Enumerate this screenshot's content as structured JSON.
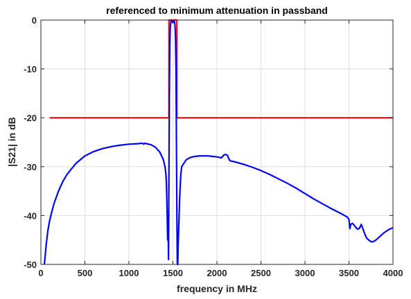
{
  "chart_data": {
    "type": "line",
    "title": "referenced to minimum attenuation in passband",
    "xlabel": "frequency in MHz",
    "ylabel": "|S21| in dB",
    "xlim": [
      0,
      4000
    ],
    "ylim": [
      -50,
      0
    ],
    "xticks": [
      0,
      500,
      1000,
      1500,
      2000,
      2500,
      3000,
      3500,
      4000
    ],
    "yticks": [
      -50,
      -40,
      -30,
      -20,
      -10,
      0
    ],
    "grid": true,
    "series": [
      {
        "color": "#ff0000",
        "x": [
          100,
          1455,
          1455,
          1545,
          1545,
          4000
        ],
        "y": [
          -20,
          -20,
          0,
          0,
          -20,
          -20
        ]
      },
      {
        "color": "#0000ff",
        "x": [
          40,
          60,
          80,
          100,
          120,
          150,
          200,
          250,
          300,
          400,
          500,
          600,
          700,
          800,
          900,
          1000,
          1100,
          1150,
          1170,
          1180,
          1200,
          1250,
          1300,
          1350,
          1390,
          1410,
          1420,
          1425,
          1430,
          1435,
          1440,
          1445,
          1450,
          1455,
          1460,
          1465,
          1470,
          1475,
          1480,
          1490,
          1500,
          1510,
          1515,
          1520,
          1525,
          1530,
          1535,
          1540,
          1545,
          1550,
          1555,
          1560,
          1570,
          1580,
          1590,
          1600,
          1650,
          1700,
          1750,
          1800,
          1900,
          2000,
          2050,
          2080,
          2100,
          2120,
          2140,
          2150,
          2200,
          2300,
          2400,
          2500,
          2600,
          2700,
          2800,
          2900,
          3000,
          3100,
          3200,
          3300,
          3400,
          3450,
          3480,
          3500,
          3510,
          3520,
          3540,
          3560,
          3580,
          3600,
          3620,
          3640,
          3660,
          3680,
          3700,
          3730,
          3760,
          3780,
          3800,
          3850,
          3900,
          3950,
          4000
        ],
        "y": [
          -50,
          -46,
          -43,
          -41,
          -39.5,
          -37.5,
          -35,
          -33,
          -31.5,
          -29.3,
          -27.8,
          -26.9,
          -26.3,
          -25.9,
          -25.6,
          -25.4,
          -25.3,
          -25.2,
          -25.4,
          -25.2,
          -25.3,
          -25.5,
          -26,
          -27,
          -28.5,
          -30,
          -31.5,
          -33,
          -36,
          -40,
          -45,
          -41,
          -49,
          -30,
          -14,
          -5,
          -1.5,
          -0.5,
          -0.2,
          -0.3,
          -0.5,
          -0.4,
          -0.2,
          -0.5,
          -1.5,
          -4,
          -10,
          -25,
          -40,
          -50,
          -50,
          -46,
          -40,
          -35,
          -31.5,
          -30,
          -28.6,
          -28.1,
          -27.9,
          -27.8,
          -27.8,
          -28,
          -28.2,
          -27.6,
          -27.5,
          -27.7,
          -28.6,
          -28.8,
          -29,
          -29.5,
          -30.1,
          -30.8,
          -31.6,
          -32.5,
          -33.4,
          -34.4,
          -35.5,
          -36.6,
          -37.6,
          -38.6,
          -39.5,
          -40,
          -40.3,
          -40.8,
          -42.7,
          -41.8,
          -41.6,
          -42,
          -42.5,
          -42.8,
          -42.6,
          -41.8,
          -42.8,
          -43.8,
          -44.6,
          -45.1,
          -45.4,
          -45.3,
          -45.1,
          -44.3,
          -43.5,
          -42.9,
          -42.5
        ]
      }
    ]
  }
}
